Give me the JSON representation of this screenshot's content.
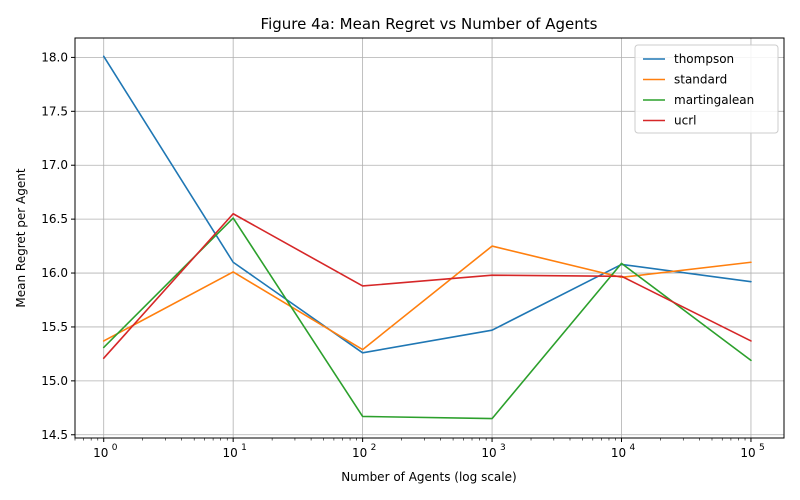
{
  "chart_data": {
    "type": "line",
    "title": "Figure 4a: Mean Regret vs Number of Agents",
    "xlabel": "Number of Agents (log scale)",
    "ylabel": "Mean Regret per Agent",
    "x_scale": "log",
    "x": [
      1,
      10,
      100,
      1000,
      10000,
      100000
    ],
    "x_ticks": [
      {
        "value": 1,
        "base": "10",
        "exp": "0"
      },
      {
        "value": 10,
        "base": "10",
        "exp": "1"
      },
      {
        "value": 100,
        "base": "10",
        "exp": "2"
      },
      {
        "value": 1000,
        "base": "10",
        "exp": "3"
      },
      {
        "value": 10000,
        "base": "10",
        "exp": "4"
      },
      {
        "value": 100000,
        "base": "10",
        "exp": "5"
      }
    ],
    "xlim": [
      0.6,
      180000
    ],
    "ylim": [
      14.47,
      18.18
    ],
    "y_ticks": [
      {
        "value": 14.5,
        "label": "14.5"
      },
      {
        "value": 15.0,
        "label": "15.0"
      },
      {
        "value": 15.5,
        "label": "15.5"
      },
      {
        "value": 16.0,
        "label": "16.0"
      },
      {
        "value": 16.5,
        "label": "16.5"
      },
      {
        "value": 17.0,
        "label": "17.0"
      },
      {
        "value": 17.5,
        "label": "17.5"
      },
      {
        "value": 18.0,
        "label": "18.0"
      }
    ],
    "grid": true,
    "legend_position": "top-right",
    "series": [
      {
        "name": "thompson",
        "color": "#1f77b4",
        "values": [
          18.01,
          16.1,
          15.26,
          15.47,
          16.08,
          15.92
        ]
      },
      {
        "name": "standard",
        "color": "#ff7f0e",
        "values": [
          15.37,
          16.01,
          15.29,
          16.25,
          15.96,
          16.1
        ]
      },
      {
        "name": "martingalean",
        "color": "#2ca02c",
        "values": [
          15.31,
          16.51,
          14.67,
          14.65,
          16.09,
          15.19
        ]
      },
      {
        "name": "ucrl",
        "color": "#d62728",
        "values": [
          15.21,
          16.55,
          15.88,
          15.98,
          15.97,
          15.37
        ]
      }
    ]
  }
}
